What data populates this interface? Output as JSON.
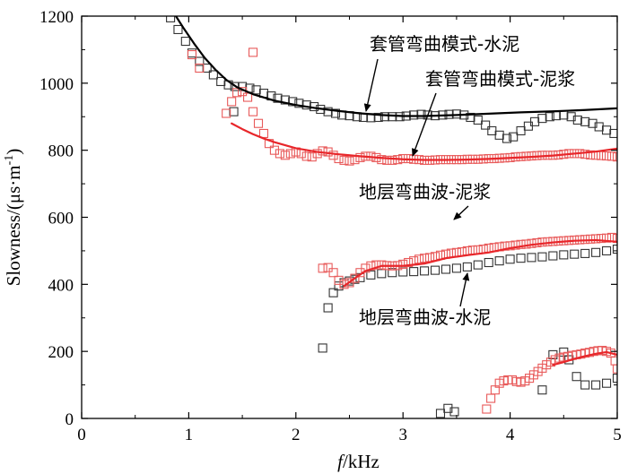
{
  "chart_data": {
    "type": "scatter",
    "xlabel_italic": "f",
    "xlabel_unit": "/kHz",
    "ylabel": "Slowness/(μs·m",
    "ylabel_sup": "-1",
    "ylabel_close": ")",
    "xlim": [
      0,
      5
    ],
    "ylim": [
      0,
      1200
    ],
    "xticks": [
      0,
      1,
      2,
      3,
      4,
      5
    ],
    "yticks": [
      0,
      200,
      400,
      600,
      800,
      1000,
      1200
    ],
    "x_minor_step": 0.5,
    "y_minor_step": 100,
    "grid": false,
    "colors": {
      "black": "#000000",
      "red": "#e8262a",
      "marker_red": "#e85a5a",
      "marker_black": "#333333"
    },
    "annotations": [
      {
        "text": "套管弯曲模式-水泥",
        "arrow_to": [
          3.0,
          900
        ]
      },
      {
        "text": "套管弯曲模式-泥浆",
        "arrow_to": [
          3.1,
          775
        ]
      },
      {
        "text": "地层弯曲波-泥浆",
        "arrow_to": [
          3.55,
          500
        ]
      },
      {
        "text": "地层弯曲波-水泥",
        "arrow_to": [
          3.65,
          440
        ]
      }
    ],
    "lines": [
      {
        "color": "#000000",
        "x": [
          0.88,
          0.95,
          1.05,
          1.15,
          1.25,
          1.35,
          1.45,
          1.6,
          1.8,
          2.0,
          2.2,
          2.4,
          2.6,
          2.8,
          3.0,
          3.2,
          3.5,
          3.8,
          4.1,
          4.4,
          4.7,
          5.0
        ],
        "y": [
          1200,
          1165,
          1118,
          1075,
          1040,
          1010,
          988,
          967,
          948,
          935,
          925,
          917,
          910,
          905,
          902,
          902,
          905,
          909,
          913,
          916,
          920,
          925
        ]
      },
      {
        "color": "#e8262a",
        "x": [
          1.4,
          1.5,
          1.6,
          1.7,
          1.8,
          1.9,
          2.0,
          2.2,
          2.4,
          2.6,
          2.8,
          3.0,
          3.2,
          3.4,
          3.6,
          3.8,
          4.0,
          4.2,
          4.4,
          4.6,
          4.8,
          5.0
        ],
        "y": [
          880,
          863,
          848,
          835,
          824,
          815,
          806,
          795,
          788,
          782,
          777,
          773,
          771,
          771,
          772,
          774,
          777,
          780,
          784,
          790,
          796,
          805
        ]
      },
      {
        "color": "#e8262a",
        "x": [
          2.45,
          2.55,
          2.65,
          2.8,
          3.0,
          3.2,
          3.4,
          3.6,
          3.8,
          4.0,
          4.2,
          4.4,
          4.6,
          4.8,
          5.0
        ],
        "y": [
          395,
          418,
          440,
          455,
          455,
          462,
          478,
          487,
          495,
          508,
          518,
          525,
          530,
          532,
          527
        ]
      },
      {
        "color": "#e8262a",
        "x": [
          4.4,
          4.5,
          4.6,
          4.7,
          4.8,
          4.9,
          5.0
        ],
        "y": [
          160,
          168,
          178,
          186,
          193,
          198,
          190
        ]
      }
    ],
    "series": [
      {
        "marker": "black-square",
        "x": [
          0.83,
          0.9,
          0.97,
          1.03,
          1.1,
          1.17,
          1.23,
          1.3,
          1.37,
          1.43,
          1.5,
          1.57,
          1.63,
          1.7,
          1.77,
          1.83,
          1.9,
          1.97,
          2.03,
          2.1,
          2.17,
          2.23,
          2.3,
          2.37,
          2.43,
          2.5,
          2.57,
          2.63,
          2.7,
          2.77,
          2.83,
          2.9,
          2.97,
          3.03,
          3.1,
          3.17,
          3.23,
          3.3,
          3.37,
          3.43,
          3.5,
          3.57,
          3.63,
          3.7,
          3.77,
          3.83,
          3.9,
          3.97,
          4.03,
          4.1,
          4.17,
          4.23,
          4.3,
          4.37,
          4.43,
          4.5,
          4.57,
          4.63,
          4.7,
          4.77,
          4.83,
          4.9,
          4.97,
          1.42
        ],
        "y": [
          1195,
          1160,
          1125,
          1090,
          1065,
          1045,
          1025,
          1005,
          995,
          990,
          990,
          985,
          980,
          970,
          962,
          955,
          950,
          945,
          940,
          935,
          930,
          922,
          915,
          910,
          905,
          903,
          900,
          898,
          897,
          898,
          900,
          900,
          900,
          902,
          905,
          907,
          905,
          903,
          905,
          907,
          908,
          905,
          898,
          890,
          875,
          858,
          845,
          835,
          840,
          858,
          872,
          885,
          895,
          900,
          903,
          905,
          900,
          890,
          885,
          880,
          870,
          860,
          850,
          915
        ]
      },
      {
        "marker": "red-square",
        "x": [
          1.03,
          1.1,
          1.35,
          1.4,
          1.45,
          1.5,
          1.55,
          1.6,
          1.65,
          1.7,
          1.75,
          1.8,
          1.85,
          1.9,
          1.95,
          2.0,
          2.05,
          2.1,
          2.15,
          2.2,
          2.25,
          2.3,
          2.35,
          2.4,
          2.45,
          2.5,
          2.55,
          2.6,
          2.65,
          2.7,
          2.75,
          2.8,
          2.85,
          2.9,
          2.95,
          3.0,
          3.05,
          3.1,
          3.15,
          3.2,
          3.25,
          3.3,
          3.35,
          3.4,
          3.45,
          3.5,
          3.55,
          3.6,
          3.65,
          3.7,
          3.75,
          3.8,
          3.85,
          3.9,
          3.95,
          4.0,
          4.05,
          4.1,
          4.15,
          4.2,
          4.25,
          4.3,
          4.35,
          4.4,
          4.45,
          4.5,
          4.55,
          4.6,
          4.65,
          4.7,
          4.75,
          4.8,
          4.85,
          4.9,
          4.95,
          5.0,
          1.6
        ],
        "y": [
          1085,
          1045,
          910,
          945,
          972,
          975,
          958,
          915,
          880,
          850,
          820,
          800,
          790,
          785,
          790,
          795,
          790,
          782,
          780,
          790,
          798,
          795,
          785,
          775,
          770,
          768,
          772,
          778,
          782,
          782,
          778,
          772,
          770,
          770,
          772,
          775,
          775,
          773,
          772,
          770,
          770,
          771,
          772,
          772,
          772,
          772,
          772,
          773,
          773,
          773,
          774,
          775,
          775,
          776,
          777,
          778,
          780,
          781,
          782,
          783,
          784,
          785,
          785,
          785,
          786,
          788,
          790,
          790,
          790,
          788,
          786,
          785,
          784,
          783,
          782,
          780,
          1092
        ]
      },
      {
        "marker": "black-square",
        "x": [
          2.25,
          2.3,
          2.35,
          2.4,
          2.45,
          2.5,
          2.55,
          2.6,
          2.7,
          2.8,
          2.9,
          3.0,
          3.1,
          3.2,
          3.3,
          3.4,
          3.5,
          3.6,
          3.7,
          3.8,
          3.9,
          4.0,
          4.1,
          4.2,
          4.3,
          4.4,
          4.5,
          4.6,
          4.7,
          4.8,
          4.9,
          5.0
        ],
        "y": [
          210,
          330,
          375,
          395,
          405,
          410,
          415,
          420,
          428,
          432,
          435,
          437,
          438,
          440,
          442,
          445,
          448,
          452,
          458,
          465,
          470,
          475,
          478,
          480,
          482,
          485,
          488,
          490,
          492,
          495,
          500,
          505
        ]
      },
      {
        "marker": "red-square",
        "x": [
          2.25,
          2.3,
          2.35,
          2.4,
          2.45,
          2.5,
          2.55,
          2.6,
          2.65,
          2.7,
          2.75,
          2.8,
          2.85,
          2.9,
          2.95,
          3.0,
          3.05,
          3.1,
          3.15,
          3.2,
          3.25,
          3.3,
          3.35,
          3.4,
          3.45,
          3.5,
          3.55,
          3.6,
          3.65,
          3.7,
          3.75,
          3.8,
          3.85,
          3.9,
          3.95,
          4.0,
          4.05,
          4.1,
          4.15,
          4.2,
          4.25,
          4.3,
          4.35,
          4.4,
          4.45,
          4.5,
          4.55,
          4.6,
          4.65,
          4.7,
          4.75,
          4.8,
          4.85,
          4.9,
          4.95,
          5.0
        ],
        "y": [
          448,
          450,
          435,
          412,
          400,
          405,
          418,
          435,
          448,
          455,
          458,
          458,
          456,
          455,
          456,
          460,
          465,
          470,
          475,
          478,
          480,
          483,
          487,
          490,
          493,
          495,
          497,
          500,
          502,
          503,
          505,
          508,
          510,
          512,
          514,
          515,
          517,
          519,
          520,
          522,
          524,
          526,
          527,
          528,
          529,
          530,
          531,
          532,
          533,
          534,
          535,
          536,
          537,
          538,
          540,
          537
        ]
      },
      {
        "marker": "black-square",
        "x": [
          3.35,
          3.42,
          3.48,
          4.3,
          4.4,
          4.5,
          4.55,
          4.62,
          4.7,
          4.8,
          4.9,
          5.0
        ],
        "y": [
          15,
          30,
          20,
          85,
          190,
          198,
          175,
          125,
          100,
          100,
          105,
          120
        ]
      },
      {
        "marker": "red-square",
        "x": [
          3.78,
          3.82,
          3.86,
          3.9,
          3.94,
          3.98,
          4.02,
          4.06,
          4.1,
          4.14,
          4.18,
          4.22,
          4.26,
          4.3,
          4.34,
          4.38,
          4.42,
          4.46,
          4.5,
          4.54,
          4.58,
          4.62,
          4.66,
          4.7,
          4.74,
          4.78,
          4.82,
          4.86,
          4.9,
          4.94,
          4.98,
          5.0
        ],
        "y": [
          28,
          60,
          85,
          105,
          112,
          115,
          115,
          110,
          108,
          112,
          120,
          130,
          140,
          150,
          160,
          168,
          175,
          180,
          183,
          185,
          188,
          190,
          192,
          195,
          197,
          200,
          202,
          203,
          200,
          195,
          172,
          148
        ]
      }
    ]
  }
}
